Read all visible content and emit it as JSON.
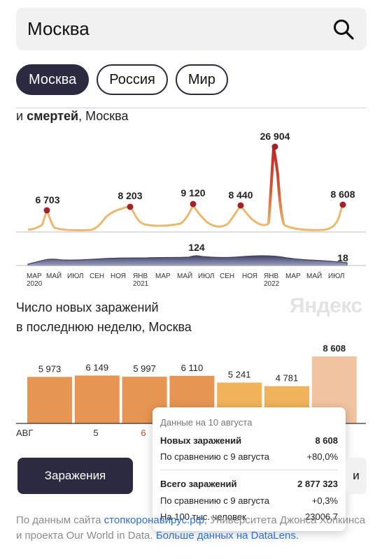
{
  "search": {
    "query": "Москва",
    "icon": "search-icon"
  },
  "tabs": [
    {
      "label": "Москва",
      "active": true
    },
    {
      "label": "Россия",
      "active": false
    },
    {
      "label": "Мир",
      "active": false
    }
  ],
  "daily_section": {
    "title_start": "и ",
    "title_bold": "смертей",
    "title_end": ", Москва"
  },
  "chart_data": [
    {
      "type": "area",
      "name": "daily_cases",
      "x_ticks": [
        {
          "label": "МАР",
          "year": "2020"
        },
        {
          "label": "МАЙ",
          "year": ""
        },
        {
          "label": "ИЮЛ",
          "year": ""
        },
        {
          "label": "СЕН",
          "year": ""
        },
        {
          "label": "НОЯ",
          "year": ""
        },
        {
          "label": "ЯНВ",
          "year": "2021"
        },
        {
          "label": "МАР",
          "year": ""
        },
        {
          "label": "МАЙ",
          "year": ""
        },
        {
          "label": "ИЮЛ",
          "year": ""
        },
        {
          "label": "СЕН",
          "year": ""
        },
        {
          "label": "НОЯ",
          "year": ""
        },
        {
          "label": "ЯНВ",
          "year": "2022"
        },
        {
          "label": "МАР",
          "year": ""
        },
        {
          "label": "МАЙ",
          "year": ""
        },
        {
          "label": "ИЮЛ",
          "year": ""
        }
      ],
      "peaks": [
        {
          "label": "6 703",
          "value": 6703
        },
        {
          "label": "8 203",
          "value": 8203
        },
        {
          "label": "9 120",
          "value": 9120
        },
        {
          "label": "8 440",
          "value": 8440
        },
        {
          "label": "26 904",
          "value": 26904
        },
        {
          "label": "8 608",
          "value": 8608
        }
      ],
      "deaths_labels": [
        {
          "label": "124",
          "value": 124
        },
        {
          "label": "18",
          "value": 18
        }
      ],
      "colors": {
        "low": "#eab86f",
        "high": "#b8272a",
        "deaths": "#4a4c6e",
        "marker": "#a3222a"
      }
    },
    {
      "type": "bar",
      "name": "weekly_cases",
      "title": "Число новых заражений в последнюю неделю, Москва",
      "x_tick_labels": [
        {
          "label": "АВГ",
          "highlight": false
        },
        {
          "label": "5",
          "highlight": false
        },
        {
          "label": "6",
          "highlight": true
        }
      ],
      "values": [
        5973,
        6149,
        5997,
        6110,
        5241,
        4781,
        8608
      ],
      "value_labels": [
        "5 973",
        "6 149",
        "5 997",
        "6 110",
        "5 241",
        "4 781",
        "8 608"
      ],
      "colors": [
        "#e69552",
        "#e69552",
        "#e69552",
        "#e69552",
        "#f0b35b",
        "#f0b35b",
        "#f2c3a0"
      ]
    }
  ],
  "watermark": "Яндекс",
  "weekly_section": {
    "title_line1": "Число новых заражений",
    "title_line2": "в последнюю неделю, Москва"
  },
  "tooltip": {
    "header": "Данные на 10 августа",
    "new_cases_label": "Новых заражений",
    "new_cases_value": "8 608",
    "compare_label_1": "По сравнению с 9 августа",
    "compare_value_1": "+80,0%",
    "total_label": "Всего заражений",
    "total_value": "2 877 323",
    "compare_label_2": "По сравнению с 9 августа",
    "compare_value_2": "+0,3%",
    "per100k_label": "На 100 тыс. человек",
    "per100k_value": "23006,7"
  },
  "buttons": {
    "infections": "Заражения",
    "second_partial": "и"
  },
  "source": {
    "prefix": "По данным сайта ",
    "link1": "стопкоронавирус.рф",
    "mid": ", Университета Джонса Хопкинса и проекта Our World in Data. ",
    "link2": "Больше данных на DataLens."
  }
}
